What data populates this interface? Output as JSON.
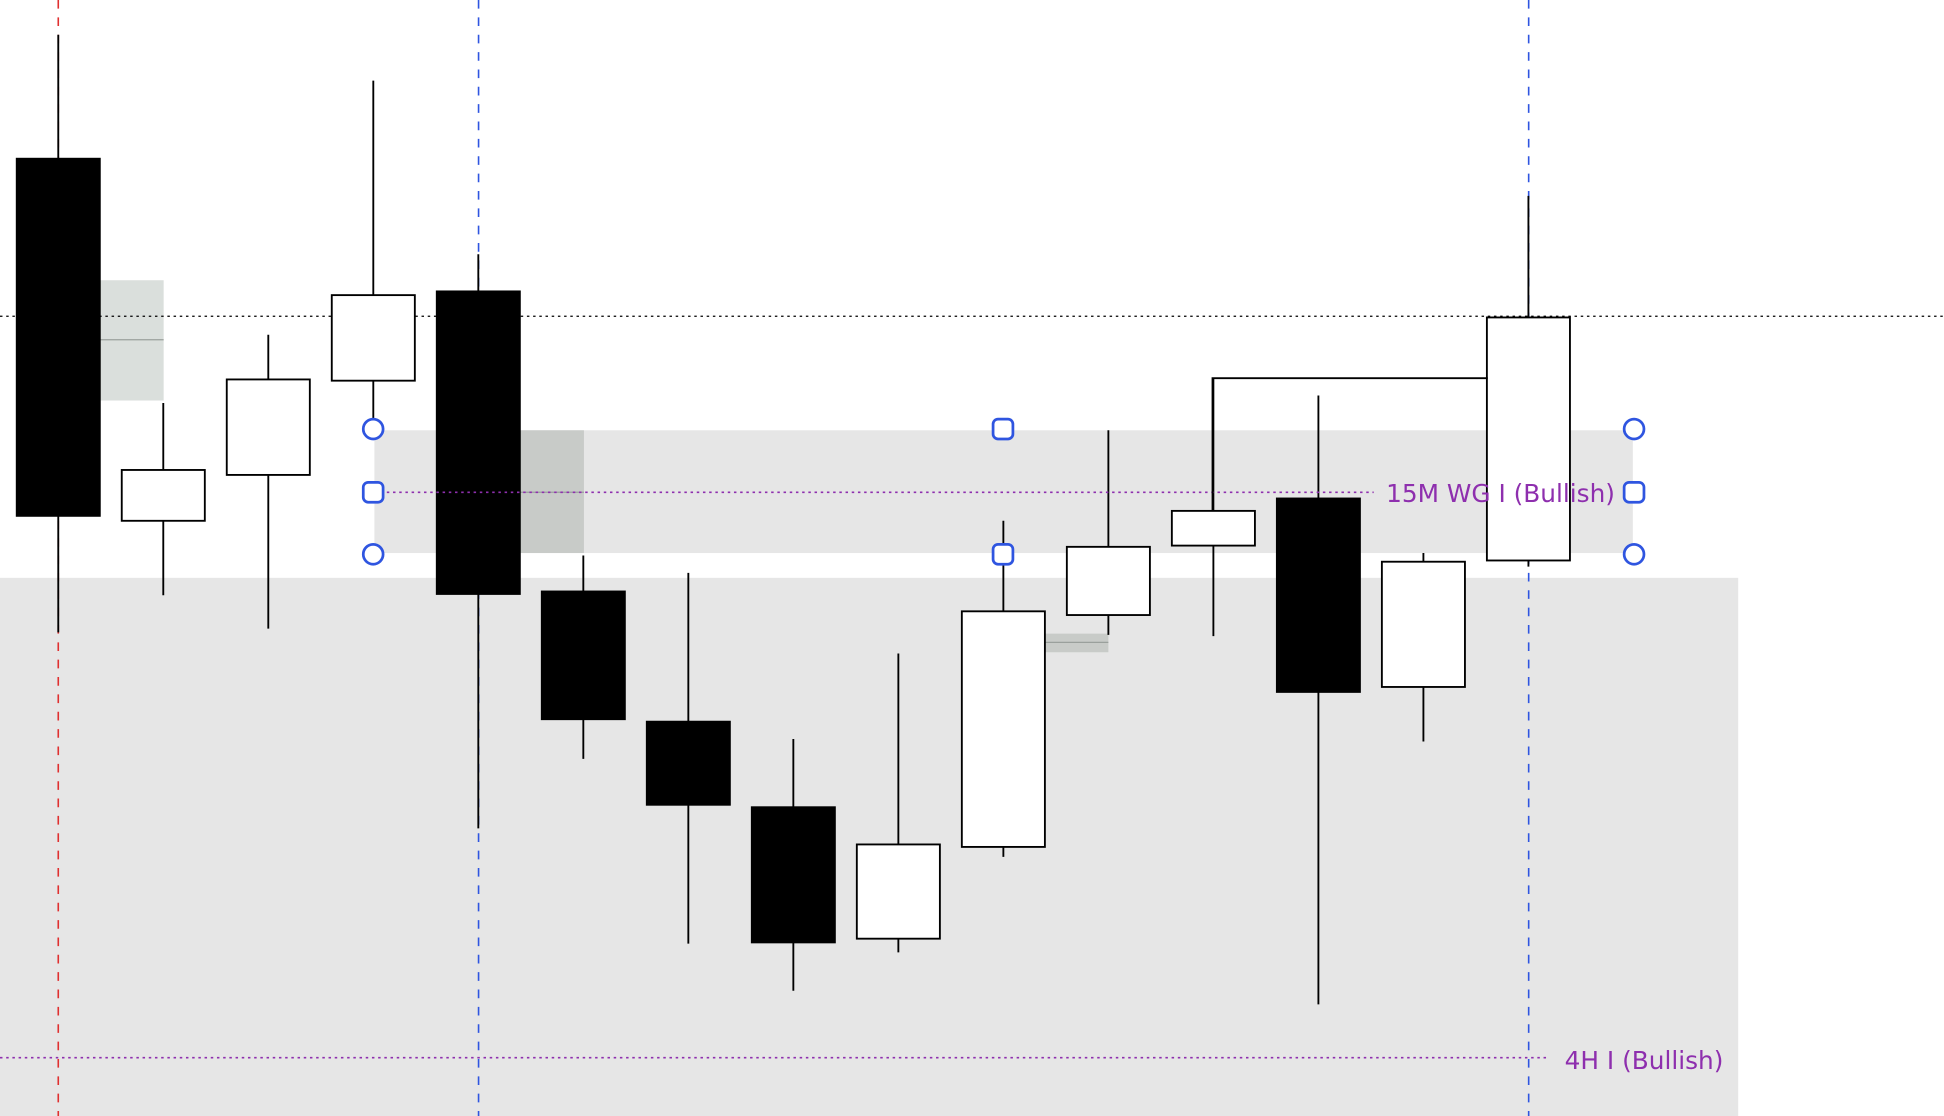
{
  "chart_data": {
    "type": "candlestick",
    "title": "",
    "xlabel": "",
    "ylabel": "",
    "grid": false,
    "ylim": [
      0,
      90
    ],
    "candles": [
      {
        "open": 77.2,
        "high": 87.2,
        "low": 39.0,
        "close": 48.4
      },
      {
        "open": 48.0,
        "high": 57.5,
        "low": 42.0,
        "close": 52.1
      },
      {
        "open": 51.7,
        "high": 63.0,
        "low": 39.3,
        "close": 59.4
      },
      {
        "open": 59.3,
        "high": 83.5,
        "low": 55.4,
        "close": 66.2
      },
      {
        "open": 66.5,
        "high": 69.5,
        "low": 23.2,
        "close": 42.1
      },
      {
        "open": 42.3,
        "high": 45.2,
        "low": 28.8,
        "close": 32.0
      },
      {
        "open": 31.8,
        "high": 43.8,
        "low": 13.9,
        "close": 25.1
      },
      {
        "open": 24.9,
        "high": 30.4,
        "low": 10.1,
        "close": 14.0
      },
      {
        "open": 14.3,
        "high": 37.3,
        "low": 13.2,
        "close": 21.9
      },
      {
        "open": 21.7,
        "high": 48.0,
        "low": 20.9,
        "close": 40.7
      },
      {
        "open": 40.4,
        "high": 55.3,
        "low": 38.8,
        "close": 45.9
      },
      {
        "open": 46.0,
        "high": 59.5,
        "low": 38.7,
        "close": 48.8
      },
      {
        "open": 49.8,
        "high": 58.1,
        "low": 9.0,
        "close": 34.2
      },
      {
        "open": 34.6,
        "high": 45.4,
        "low": 30.2,
        "close": 44.7
      },
      {
        "open": 44.8,
        "high": 74.2,
        "low": 44.3,
        "close": 64.4
      }
    ],
    "levels": {
      "dotted_black": 64.5,
      "label_15m": {
        "text": "15M WG I (Bullish)",
        "value": 50.3
      },
      "label_4h": {
        "text": "4H I (Bullish)",
        "value": 4.7
      }
    },
    "zones": [
      {
        "from_candle": 3,
        "to_candle": 15.5,
        "top": 55.3,
        "bottom": 45.4
      },
      {
        "from_candle": 0,
        "to_candle": 16.5,
        "top": 43.4,
        "bottom": 0
      }
    ],
    "colors": {
      "bull": "#ffffff",
      "bear": "#000000",
      "zone": "#e6e6e6",
      "label": "#8e2fae",
      "handle": "#2f55e0",
      "red_marker": "#e03030",
      "blue_marker": "#2f55e0"
    }
  }
}
